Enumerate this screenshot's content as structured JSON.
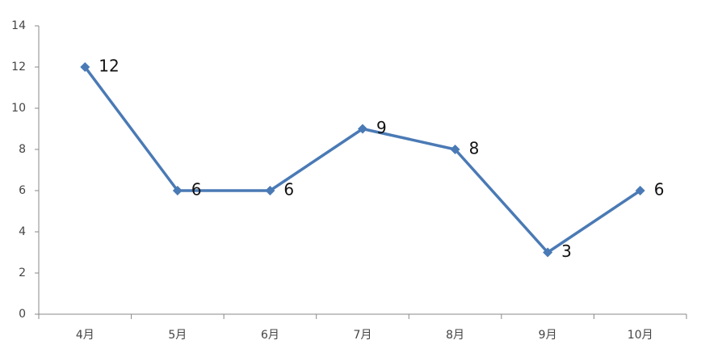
{
  "chart_data": {
    "type": "line",
    "categories": [
      "4月",
      "5月",
      "6月",
      "7月",
      "8月",
      "9月",
      "10月"
    ],
    "series": [
      {
        "values": [
          12,
          6,
          6,
          9,
          8,
          3,
          6
        ],
        "color": "#4a7ab5"
      }
    ],
    "ylim": [
      0,
      14
    ],
    "yticks": [
      0,
      2,
      4,
      6,
      8,
      10,
      12,
      14
    ],
    "grid": false
  }
}
